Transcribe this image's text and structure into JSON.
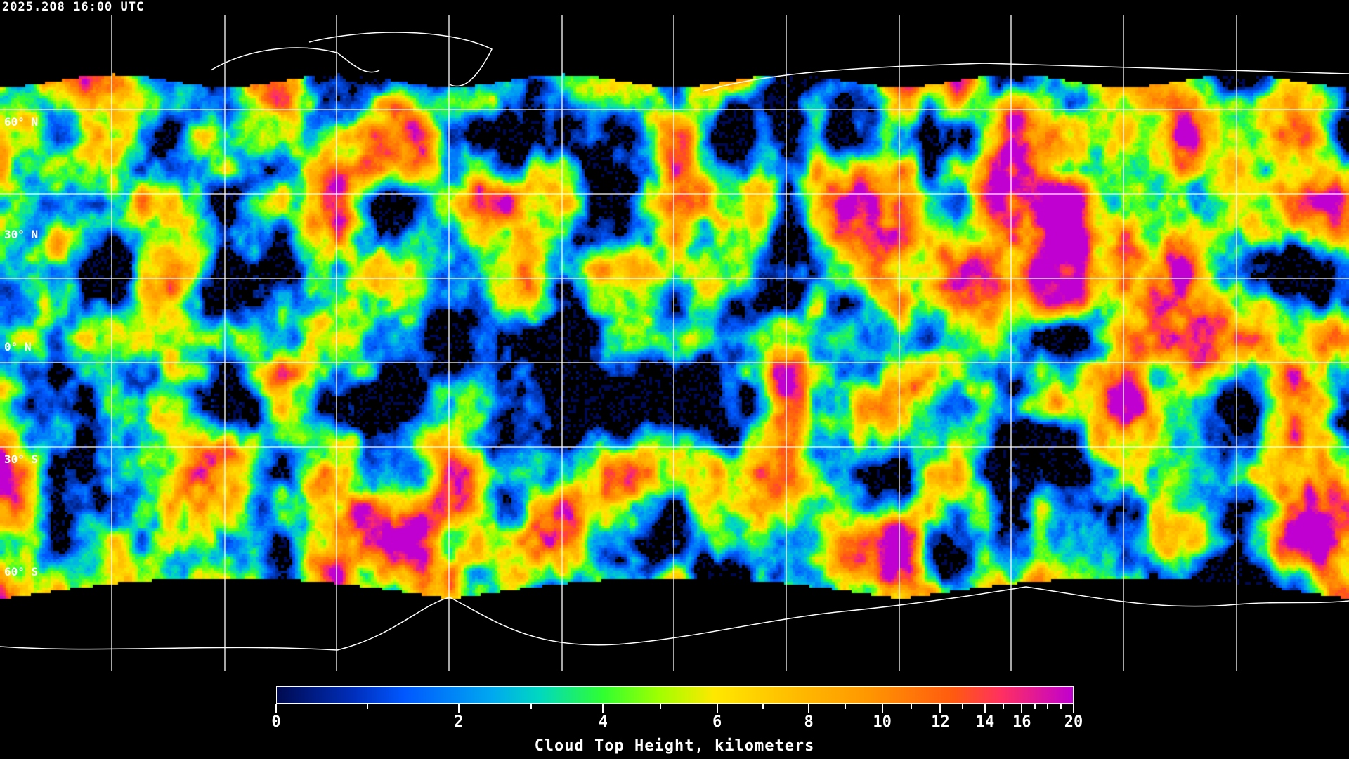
{
  "timestamp": "2025.208 16:00 UTC",
  "map": {
    "lat_labels": [
      "60° N",
      "30° N",
      "0° N",
      "30° S",
      "60° S"
    ],
    "gridlines": true,
    "background": "#000000",
    "coastline_color": "#ffffff"
  },
  "colorbar": {
    "title": "Cloud Top Height, kilometers",
    "range": [
      0,
      20
    ],
    "major_ticks": [
      "0",
      "2",
      "4",
      "6",
      "8",
      "10",
      "12",
      "14",
      "16",
      "20"
    ],
    "minor_ticks": [
      1,
      3,
      5,
      7,
      9,
      11,
      13,
      15,
      17,
      18,
      19
    ],
    "colors": [
      "#000a50",
      "#0058ff",
      "#00a8f0",
      "#30ff30",
      "#ffe800",
      "#ff9800",
      "#ff5a10",
      "#ff3060",
      "#c000d0"
    ]
  }
}
